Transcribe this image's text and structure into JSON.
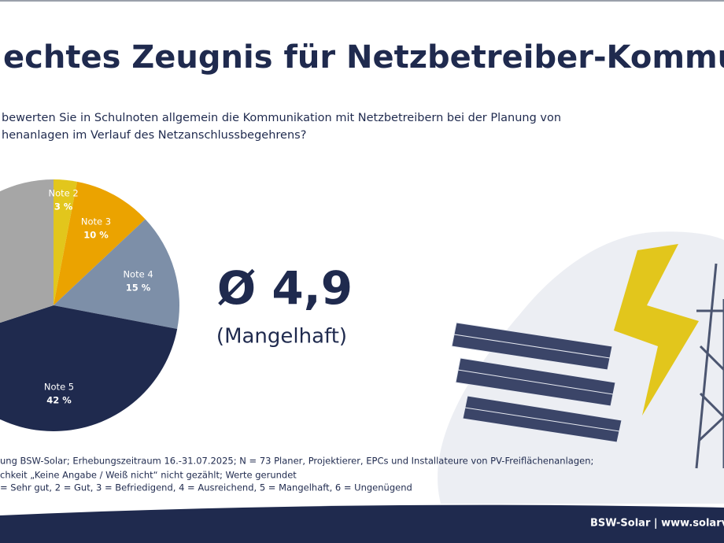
{
  "chart_data": {
    "type": "pie",
    "title": "echtes Zeugnis für Netzbetreiber-Kommunikatio",
    "subtitle": [
      "bewerten Sie in Schulnoten allgemein die Kommunikation mit Netzbetreibern bei der Planung von",
      "henanlagen im Verlauf des Netzanschlussbegehrens?"
    ],
    "categories": [
      "Note 2",
      "Note 3",
      "Note 4",
      "Note 5",
      null
    ],
    "values": [
      3,
      10,
      15,
      42,
      30
    ],
    "value_labels": [
      "3 %",
      "10 %",
      "15 %",
      "42 %",
      null
    ],
    "colors": [
      "#e2c61c",
      "#eba300",
      "#7d8fa8",
      "#1f2a4e",
      "#a6a6a6"
    ],
    "average": "Ø 4,9",
    "average_rating": "(Mangelhaft)",
    "notes": [
      "ung BSW-Solar; Erhebungszeitraum 16.-31.07.2025; N = 73 Planer, Projektierer, EPCs und Installateure von PV-Freiflächenanlagen;",
      "chkeit „Keine Angabe / Weiß nicht“ nicht gezählt; Werte gerundet",
      "= Sehr gut, 2 = Gut, 3 = Befriedigend, 4 = Ausreichend, 5 = Mangelhaft, 6 = Ungenügend"
    ],
    "footer": "BSW-Solar | www.solarv"
  }
}
